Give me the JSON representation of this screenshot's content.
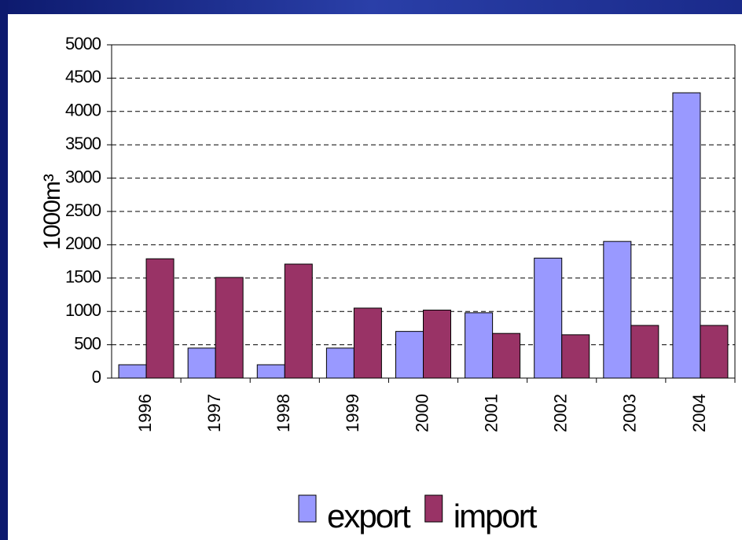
{
  "chart_data": {
    "type": "bar",
    "y_label": "1000m³",
    "categories": [
      "1996",
      "1997",
      "1998",
      "1999",
      "2000",
      "2001",
      "2002",
      "2003",
      "2004"
    ],
    "series": [
      {
        "name": "export",
        "color": "#9999ff",
        "values": [
          200,
          450,
          200,
          450,
          700,
          980,
          1800,
          2050,
          4280
        ]
      },
      {
        "name": "import",
        "color": "#993366",
        "values": [
          1790,
          1510,
          1710,
          1050,
          1020,
          670,
          650,
          790,
          790
        ]
      }
    ],
    "ylim": [
      0,
      5000
    ],
    "yticks": [
      0,
      500,
      1000,
      1500,
      2000,
      2500,
      3000,
      3500,
      4000,
      4500,
      5000
    ],
    "grid": true,
    "legend": "bottom"
  }
}
